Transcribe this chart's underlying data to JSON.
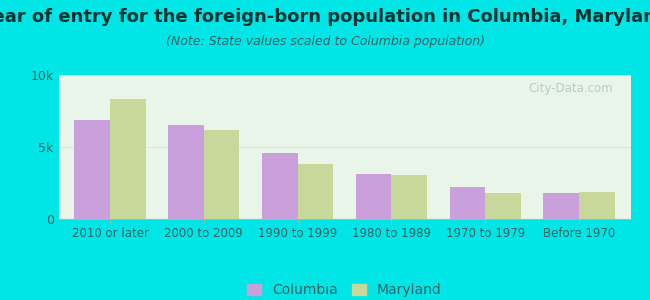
{
  "title": "Year of entry for the foreign-born population in Columbia, Maryland",
  "subtitle": "(Note: State values scaled to Columbia population)",
  "categories": [
    "2010 or later",
    "2000 to 2009",
    "1990 to 1999",
    "1980 to 1989",
    "1970 to 1979",
    "Before 1970"
  ],
  "columbia_values": [
    6900,
    6500,
    4600,
    3100,
    2200,
    1800
  ],
  "maryland_values": [
    8300,
    6200,
    3800,
    3050,
    1800,
    1900
  ],
  "columbia_color": "#c9a0dc",
  "maryland_color": "#c8d89a",
  "bg_outer": "#00e5e5",
  "ylim": [
    0,
    10000
  ],
  "ytick_labels": [
    "0",
    "5k",
    "10k"
  ],
  "grid_color": "#d8e8d8",
  "bar_width": 0.38,
  "legend_labels": [
    "Columbia",
    "Maryland"
  ],
  "title_fontsize": 13,
  "subtitle_fontsize": 9,
  "axis_fontsize": 9,
  "legend_fontsize": 10,
  "title_color": "#003333",
  "subtitle_color": "#336666",
  "tick_color": "#336666",
  "watermark_color": "#b0c8c8"
}
